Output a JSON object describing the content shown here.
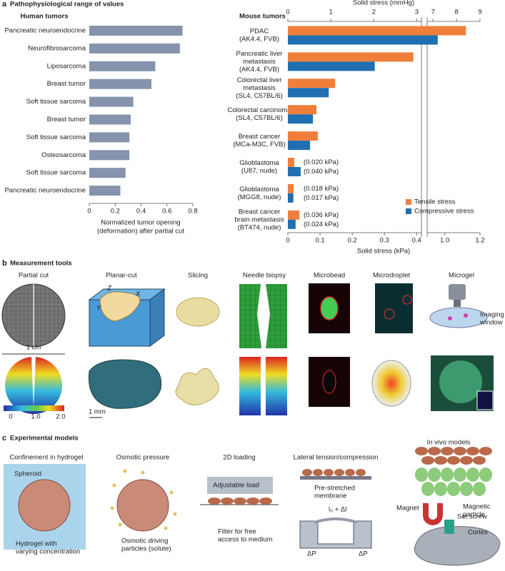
{
  "chart_data": [
    {
      "type": "bar",
      "orientation": "horizontal",
      "heading": "Human tumors",
      "categories": [
        "Pancreatic neuroendocrine",
        "Neurofibrosarcoma",
        "Liposarcoma",
        "Breast tumor",
        "Soft tissue sarcoma",
        "Breast tumor",
        "Soft tissue sarcoma",
        "Osteosarcoma",
        "Soft tissue sarcoma",
        "Pancreatic neuroendocrine"
      ],
      "values": [
        0.72,
        0.7,
        0.51,
        0.48,
        0.34,
        0.32,
        0.31,
        0.31,
        0.28,
        0.24
      ],
      "color": "#8593ad",
      "xlim": [
        0,
        0.8
      ],
      "xticks": [
        0,
        0.2,
        0.4,
        0.6,
        0.8
      ],
      "xlabel": [
        "Normalized tumor opening",
        "(deformation) after partial cut"
      ]
    },
    {
      "type": "bar",
      "orientation": "horizontal",
      "heading": "Mouse tumors",
      "categories": [
        [
          "PDAC",
          "(AK4.4, FVB)"
        ],
        [
          "Pancreatic liver",
          "metastasis",
          "(AK4.4, FVB)"
        ],
        [
          "Colorectal liver",
          "metastasis",
          "(SL4, C57BL/6)"
        ],
        [
          "Colorectal carcinoma",
          "(SL4, C57BL/6)"
        ],
        [
          "Breast cancer",
          "(MCa-M3C, FVB)"
        ],
        [
          "Glioblastoma",
          "(U87, nude)"
        ],
        [
          "Glioblastoma",
          "(MGG8, nude)"
        ],
        [
          "Breast cancer",
          "brain metastasis",
          "(BT474, nude)"
        ]
      ],
      "series": [
        {
          "name": "Tensile stress",
          "color": "#f07f3c",
          "values": [
            1.12,
            0.39,
            0.147,
            0.089,
            0.093,
            0.02,
            0.018,
            0.036
          ],
          "value_labels": [
            null,
            null,
            null,
            null,
            null,
            "(0.020 kPa)",
            "(0.018 kPa)",
            "(0.036 kPa)"
          ]
        },
        {
          "name": "Compressive stress",
          "color": "#1f6fb2",
          "values": [
            0.96,
            0.27,
            0.127,
            0.078,
            0.069,
            0.04,
            0.017,
            0.024
          ],
          "value_labels": [
            null,
            null,
            null,
            null,
            null,
            "(0.040 kPa)",
            "(0.017 kPa)",
            "(0.024 kPa)"
          ]
        }
      ],
      "xlim": [
        0,
        1.2
      ],
      "x_break": [
        0.415,
        0.9
      ],
      "xticks": [
        0,
        0.1,
        0.2,
        0.3,
        0.4,
        {
          "value": 1,
          "label": "1.0"
        },
        1.2
      ],
      "xlabel": "Solid stress (kPa)",
      "x2lim": [
        0,
        9
      ],
      "x2_break": [
        3.11,
        6.75
      ],
      "x2ticks": [
        0,
        1,
        2,
        3,
        7,
        8,
        9
      ],
      "x2label": "Solid stress (mmHg)",
      "legend": "lower right"
    }
  ],
  "panel_a": {
    "label": "a",
    "title": "Pathophysiological range of values"
  },
  "measurement_tools": {
    "label": "b",
    "title": "Measurement tools",
    "tools": [
      "Partial cut",
      "Planar-cut",
      "Slicing",
      "Needle biopsy",
      "Microbead",
      "Microdroplet",
      "Microgel"
    ],
    "scale_cm": "1 cm",
    "colorbar_ticks": [
      "0",
      "1.0",
      "2.0"
    ],
    "axes": [
      "Z",
      "X",
      "Y"
    ],
    "scale_mm": "1 mm",
    "imaging_window": [
      "Imaging",
      "window"
    ]
  },
  "experimental_models": {
    "label": "c",
    "title": "Experimental models",
    "models": [
      "Confinement in hydrogel",
      "Osmotic pressure",
      "2D loading",
      "Lateral tension/compression",
      "In vivo models"
    ],
    "annotations": {
      "spheroid": [
        "Spheroid"
      ],
      "hydrogel": [
        "Hydrogel with",
        "varying concentration"
      ],
      "osmotic": [
        "Osmotic driving",
        "particles (solute)"
      ],
      "load": [
        "Adjustable load"
      ],
      "filter": [
        "Filter for free",
        "access to medium"
      ],
      "membrane": [
        "Pre-stretched",
        "membrane"
      ],
      "stretch": [
        "l₀ + Δl"
      ],
      "pressure_left": [
        "ΔP"
      ],
      "pressure_right": [
        "ΔP"
      ],
      "magnet": [
        "Magnet"
      ],
      "particle": [
        "Magnetic",
        "particle"
      ],
      "screw": [
        "Set screw"
      ],
      "cortex": [
        "Cortex"
      ]
    }
  }
}
